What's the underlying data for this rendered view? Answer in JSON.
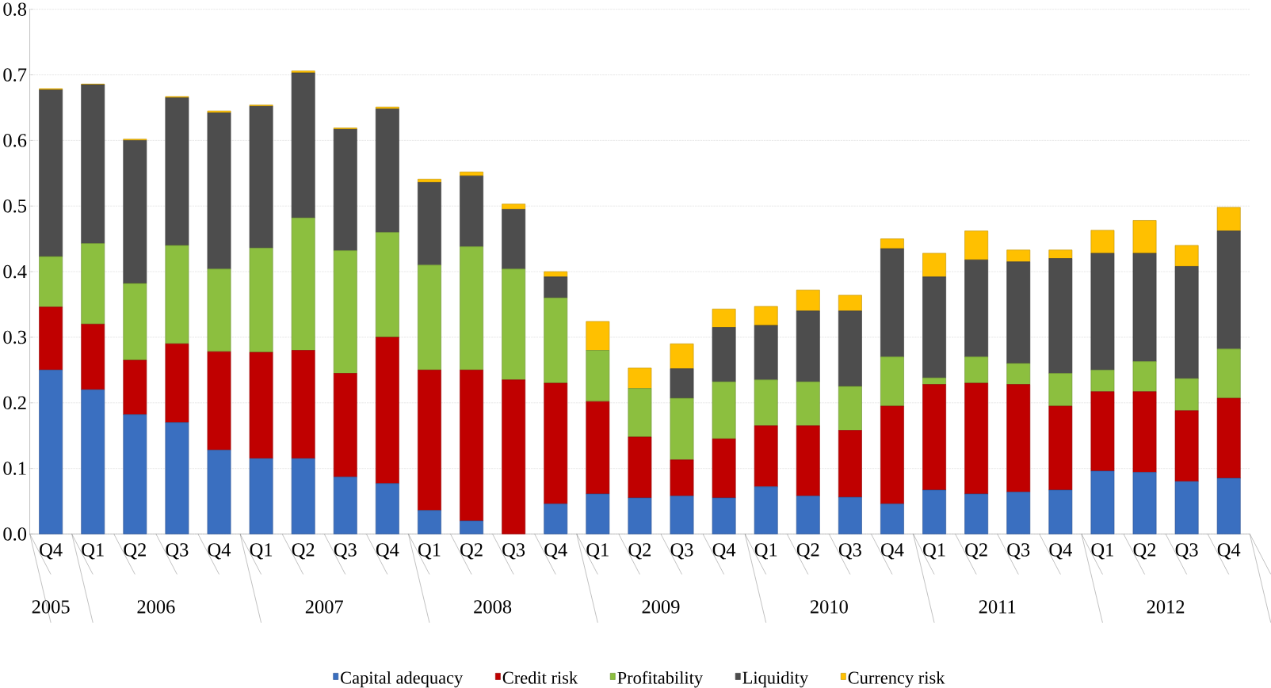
{
  "chart_data": {
    "type": "bar",
    "stacked": true,
    "categories": [
      "Q4",
      "Q1",
      "Q2",
      "Q3",
      "Q4",
      "Q1",
      "Q2",
      "Q3",
      "Q4",
      "Q1",
      "Q2",
      "Q3",
      "Q4",
      "Q1",
      "Q2",
      "Q3",
      "Q4",
      "Q1",
      "Q2",
      "Q3",
      "Q4",
      "Q1",
      "Q2",
      "Q3",
      "Q4",
      "Q1",
      "Q2",
      "Q3",
      "Q4"
    ],
    "series": [
      {
        "name": "Capital adequacy",
        "color": "#3a6fc0",
        "values": [
          0.25,
          0.22,
          0.182,
          0.17,
          0.128,
          0.115,
          0.115,
          0.087,
          0.077,
          0.036,
          0.02,
          0,
          0.046,
          0.061,
          0.055,
          0.058,
          0.055,
          0.072,
          0.058,
          0.056,
          0.046,
          0.067,
          0.061,
          0.064,
          0.067,
          0.096,
          0.094,
          0.08,
          0.085
        ]
      },
      {
        "name": "Credit risk",
        "color": "#c00000",
        "values": [
          0.096,
          0.1,
          0.083,
          0.12,
          0.15,
          0.162,
          0.165,
          0.158,
          0.223,
          0.214,
          0.23,
          0.235,
          0.184,
          0.141,
          0.093,
          0.055,
          0.09,
          0.093,
          0.107,
          0.102,
          0.149,
          0.161,
          0.169,
          0.164,
          0.128,
          0.121,
          0.123,
          0.108,
          0.122
        ]
      },
      {
        "name": "Profitability",
        "color": "#8cbf3f",
        "values": [
          0.077,
          0.123,
          0.117,
          0.15,
          0.126,
          0.159,
          0.202,
          0.187,
          0.16,
          0.16,
          0.188,
          0.169,
          0.13,
          0.078,
          0.074,
          0.094,
          0.087,
          0.07,
          0.067,
          0.067,
          0.075,
          0.01,
          0.04,
          0.032,
          0.05,
          0.033,
          0.046,
          0.049,
          0.075
        ]
      },
      {
        "name": "Liquidity",
        "color": "#4d4d4d",
        "values": [
          0.254,
          0.242,
          0.218,
          0.225,
          0.238,
          0.216,
          0.221,
          0.185,
          0.188,
          0.126,
          0.108,
          0.091,
          0.032,
          0,
          0,
          0.045,
          0.083,
          0.083,
          0.108,
          0.115,
          0.165,
          0.154,
          0.148,
          0.155,
          0.175,
          0.178,
          0.165,
          0.171,
          0.18
        ]
      },
      {
        "name": "Currency risk",
        "color": "#ffc000",
        "values": [
          0.002,
          0.001,
          0.002,
          0.002,
          0.003,
          0.002,
          0.003,
          0.002,
          0.003,
          0.005,
          0.006,
          0.008,
          0.008,
          0.044,
          0.031,
          0.038,
          0.028,
          0.029,
          0.032,
          0.024,
          0.015,
          0.036,
          0.044,
          0.018,
          0.013,
          0.035,
          0.05,
          0.032,
          0.036
        ]
      }
    ],
    "ylim": [
      0,
      0.8
    ],
    "yticks": [
      {
        "value": 0,
        "label": "0.0"
      },
      {
        "value": 0.1,
        "label": "0.1"
      },
      {
        "value": 0.2,
        "label": "0.2"
      },
      {
        "value": 0.3,
        "label": "0.3"
      },
      {
        "value": 0.4,
        "label": "0.4"
      },
      {
        "value": 0.5,
        "label": "0.5"
      },
      {
        "value": 0.6,
        "label": "0.6"
      },
      {
        "value": 0.7,
        "label": "0.7"
      },
      {
        "value": 0.8,
        "label": "0.8"
      }
    ],
    "annotations": [
      "2005",
      "2006",
      "2007",
      "2008",
      "2009",
      "2010",
      "2011",
      "2012"
    ],
    "grid": "y",
    "legend": "bottom"
  }
}
